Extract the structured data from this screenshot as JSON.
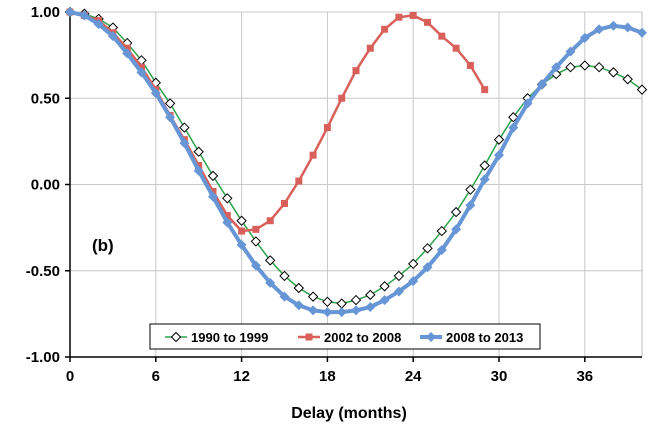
{
  "chart_data": {
    "type": "line",
    "title": "",
    "panel_label": "(b)",
    "xlabel": "Delay (months)",
    "ylabel": "",
    "xlim": [
      0,
      40
    ],
    "ylim": [
      -1.0,
      1.0
    ],
    "xticks": [
      0,
      6,
      12,
      18,
      24,
      30,
      36
    ],
    "xtick_labels": [
      "0",
      "6",
      "12",
      "18",
      "24",
      "30",
      "36"
    ],
    "yticks": [
      1.0,
      0.5,
      0.0,
      -0.5,
      -1.0
    ],
    "ytick_labels": [
      "1.00",
      "0.50",
      "0.00",
      "-0.50",
      "-1.00"
    ],
    "grid": true,
    "legend_position": "bottom-center",
    "series": [
      {
        "name": "1990 to 1999",
        "color": "#2ca24a",
        "marker": "open-diamond",
        "x": [
          0,
          1,
          2,
          3,
          4,
          5,
          6,
          7,
          8,
          9,
          10,
          11,
          12,
          13,
          14,
          15,
          16,
          17,
          18,
          19,
          20,
          21,
          22,
          23,
          24,
          25,
          26,
          27,
          28,
          29,
          30,
          31,
          32,
          33,
          34,
          35,
          36,
          37,
          38,
          39,
          40
        ],
        "y": [
          1.0,
          0.99,
          0.96,
          0.91,
          0.82,
          0.72,
          0.59,
          0.47,
          0.33,
          0.19,
          0.05,
          -0.08,
          -0.21,
          -0.33,
          -0.44,
          -0.53,
          -0.6,
          -0.65,
          -0.68,
          -0.69,
          -0.67,
          -0.64,
          -0.59,
          -0.53,
          -0.46,
          -0.37,
          -0.27,
          -0.16,
          -0.03,
          0.11,
          0.26,
          0.39,
          0.5,
          0.58,
          0.64,
          0.68,
          0.69,
          0.68,
          0.65,
          0.61,
          0.55
        ]
      },
      {
        "name": "2002 to 2008",
        "color": "#d9605a",
        "marker": "square",
        "x": [
          0,
          1,
          2,
          3,
          4,
          5,
          6,
          7,
          8,
          9,
          10,
          11,
          12,
          13,
          14,
          15,
          16,
          17,
          18,
          19,
          20,
          21,
          22,
          23,
          24,
          25,
          26,
          27,
          28,
          29
        ],
        "y": [
          1.0,
          0.98,
          0.95,
          0.88,
          0.79,
          0.68,
          0.55,
          0.4,
          0.26,
          0.11,
          -0.04,
          -0.18,
          -0.27,
          -0.26,
          -0.21,
          -0.11,
          0.02,
          0.17,
          0.33,
          0.5,
          0.66,
          0.79,
          0.9,
          0.97,
          0.98,
          0.94,
          0.86,
          0.79,
          0.69,
          0.55
        ]
      },
      {
        "name": "2008 to 2013",
        "color": "#6796d6",
        "marker": "filled-diamond",
        "x": [
          0,
          1,
          2,
          3,
          4,
          5,
          6,
          7,
          8,
          9,
          10,
          11,
          12,
          13,
          14,
          15,
          16,
          17,
          18,
          19,
          20,
          21,
          22,
          23,
          24,
          25,
          26,
          27,
          28,
          29,
          30,
          31,
          32,
          33,
          34,
          35,
          36,
          37,
          38,
          39,
          40
        ],
        "y": [
          1.0,
          0.98,
          0.93,
          0.86,
          0.76,
          0.65,
          0.53,
          0.39,
          0.24,
          0.08,
          -0.07,
          -0.22,
          -0.35,
          -0.47,
          -0.57,
          -0.65,
          -0.7,
          -0.73,
          -0.74,
          -0.74,
          -0.73,
          -0.71,
          -0.67,
          -0.62,
          -0.56,
          -0.48,
          -0.38,
          -0.26,
          -0.12,
          0.03,
          0.17,
          0.33,
          0.47,
          0.58,
          0.68,
          0.77,
          0.85,
          0.9,
          0.92,
          0.91,
          0.88
        ]
      }
    ]
  }
}
